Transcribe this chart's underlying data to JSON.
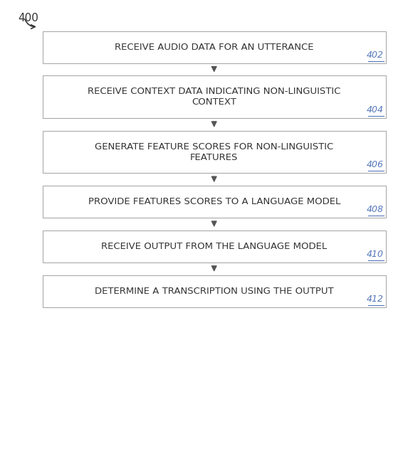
{
  "figure_label": "400",
  "bg_color": "#ffffff",
  "box_color": "#ffffff",
  "box_edge_color": "#aaaaaa",
  "text_color": "#333333",
  "arrow_color": "#555555",
  "label_color": "#5577bb",
  "boxes": [
    {
      "id": "402",
      "text": "RECEIVE AUDIO DATA FOR AN UTTERANCE",
      "label": "402",
      "lines": 1
    },
    {
      "id": "404",
      "text": "RECEIVE CONTEXT DATA INDICATING NON-LINGUISTIC\nCONTEXT",
      "label": "404",
      "lines": 2
    },
    {
      "id": "406",
      "text": "GENERATE FEATURE SCORES FOR NON-LINGUISTIC\nFEATURES",
      "label": "406",
      "lines": 2
    },
    {
      "id": "408",
      "text": "PROVIDE FEATURES SCORES TO A LANGUAGE MODEL",
      "label": "408",
      "lines": 1
    },
    {
      "id": "410",
      "text": "RECEIVE OUTPUT FROM THE LANGUAGE MODEL",
      "label": "410",
      "lines": 1
    },
    {
      "id": "412",
      "text": "DETERMINE A TRANSCRIPTION USING THE OUTPUT",
      "label": "412",
      "lines": 1
    }
  ],
  "font_size_box": 9.5,
  "font_size_label": 9.0,
  "font_size_fig_label": 11.0
}
